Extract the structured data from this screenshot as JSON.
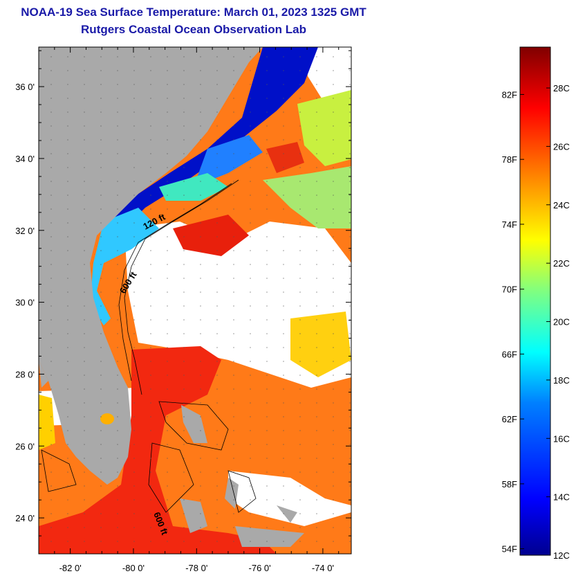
{
  "header": {
    "title": "NOAA-19 Sea Surface Temperature:  March 01, 2023 1325 GMT",
    "subtitle": "Rutgers Coastal Ocean Observation Lab"
  },
  "map": {
    "lat_labels": [
      "36 0'",
      "34 0'",
      "32 0'",
      "30 0'",
      "28 0'",
      "26 0'",
      "24 0'"
    ],
    "lat_values": [
      36,
      34,
      32,
      30,
      28,
      26,
      24
    ],
    "lon_labels": [
      "-82 0'",
      "-80 0'",
      "-78 0'",
      "-76 0'",
      "-74 0'"
    ],
    "lon_values": [
      -82,
      -80,
      -78,
      -76,
      -74
    ],
    "lat_range": [
      23,
      37.1
    ],
    "lon_range": [
      -83,
      -73.1
    ],
    "contour_labels": [
      "120 ft",
      "600 ft",
      "600 ft"
    ],
    "land_color": "#a9a9a9",
    "cloud_color": "#ffffff"
  },
  "colorbar": {
    "fahrenheit_labels": [
      "54F",
      "58F",
      "62F",
      "66F",
      "70F",
      "74F",
      "78F",
      "82F"
    ],
    "fahrenheit_values": [
      54,
      58,
      62,
      66,
      70,
      74,
      78,
      82
    ],
    "celsius_labels": [
      "12C",
      "14C",
      "16C",
      "18C",
      "20C",
      "22C",
      "24C",
      "26C",
      "28C"
    ],
    "celsius_values": [
      12,
      14,
      16,
      18,
      20,
      22,
      24,
      26,
      28
    ],
    "range_c": [
      12,
      29.4
    ],
    "colormap": [
      "#00008f",
      "#0000ff",
      "#0080ff",
      "#00ffff",
      "#80ff80",
      "#ffff00",
      "#ff8000",
      "#ff0000",
      "#800000"
    ]
  }
}
